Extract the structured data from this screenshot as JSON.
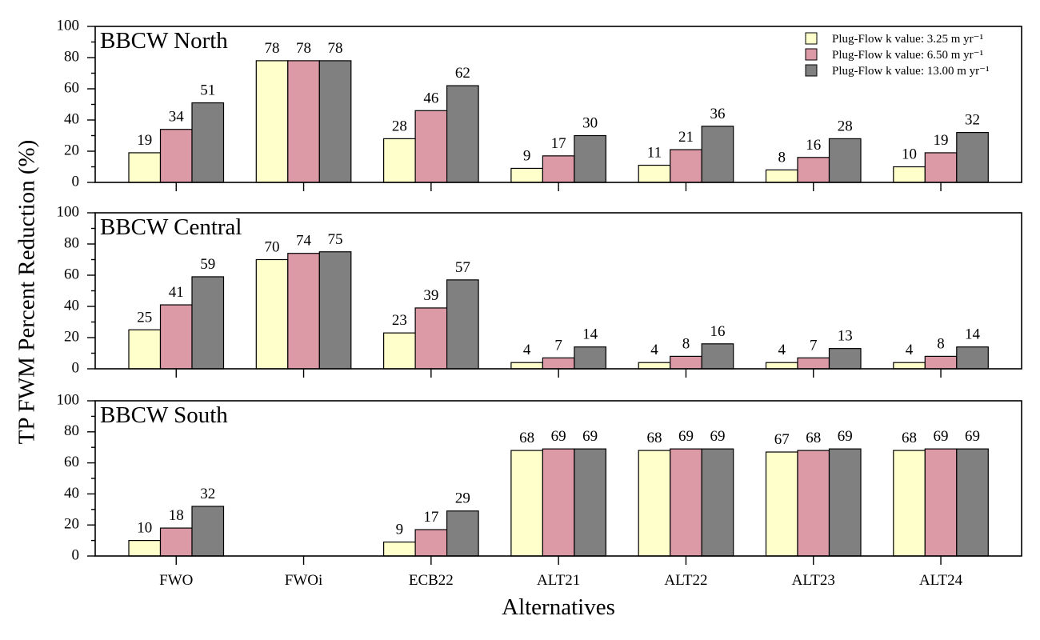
{
  "chart_data": {
    "type": "bar",
    "ylabel": "TP FWM Percent Reduction (%)",
    "xlabel": "Alternatives",
    "categories": [
      "FWO",
      "FWOi",
      "ECB22",
      "ALT21",
      "ALT22",
      "ALT23",
      "ALT24"
    ],
    "ylim": [
      0,
      100
    ],
    "yticks": [
      0,
      20,
      40,
      60,
      80,
      100
    ],
    "legend": {
      "placement": "top-right",
      "entries": [
        {
          "label": "Plug-Flow k value:  3.25 m yr⁻¹",
          "color": "#ffffcc"
        },
        {
          "label": "Plug-Flow k value:  6.50 m yr⁻¹",
          "color": "#dc9aa6"
        },
        {
          "label": "Plug-Flow k value: 13.00 m yr⁻¹",
          "color": "#808080"
        }
      ]
    },
    "panels": [
      {
        "title": "BBCW North",
        "series": [
          {
            "values": [
              19,
              78,
              28,
              9,
              11,
              8,
              10
            ],
            "labels": [
              "19",
              "78",
              "28",
              "9",
              "11",
              "8",
              "10"
            ]
          },
          {
            "values": [
              34,
              78,
              46,
              17,
              21,
              16,
              19
            ],
            "labels": [
              "34",
              "78",
              "46",
              "17",
              "21",
              "16",
              "19"
            ]
          },
          {
            "values": [
              51,
              78,
              62,
              30,
              36,
              28,
              32
            ],
            "labels": [
              "51",
              "78",
              "62",
              "30",
              "36",
              "28",
              "32"
            ]
          }
        ]
      },
      {
        "title": "BBCW Central",
        "series": [
          {
            "values": [
              25,
              70,
              23,
              4,
              4,
              4,
              4
            ],
            "labels": [
              "25",
              "70",
              "23",
              "4",
              "4",
              "4",
              "4"
            ]
          },
          {
            "values": [
              41,
              74,
              39,
              7,
              8,
              7,
              8
            ],
            "labels": [
              "41",
              "74",
              "39",
              "7",
              "8",
              "7",
              "8"
            ]
          },
          {
            "values": [
              59,
              75,
              57,
              14,
              16,
              13,
              14
            ],
            "labels": [
              "59",
              "75",
              "57",
              "14",
              "16",
              "13",
              "14"
            ]
          }
        ]
      },
      {
        "title": "BBCW South",
        "series": [
          {
            "values": [
              10,
              null,
              9,
              68,
              68,
              67,
              68
            ],
            "labels": [
              "10",
              "",
              "9",
              "68",
              "68",
              "67",
              "68"
            ]
          },
          {
            "values": [
              18,
              null,
              17,
              69,
              69,
              68,
              69
            ],
            "labels": [
              "18",
              "",
              "17",
              "69",
              "69",
              "68",
              "69"
            ]
          },
          {
            "values": [
              32,
              null,
              29,
              69,
              69,
              69,
              69
            ],
            "labels": [
              "32",
              "",
              "29",
              "69",
              "69",
              "69",
              "69"
            ]
          }
        ]
      }
    ]
  }
}
